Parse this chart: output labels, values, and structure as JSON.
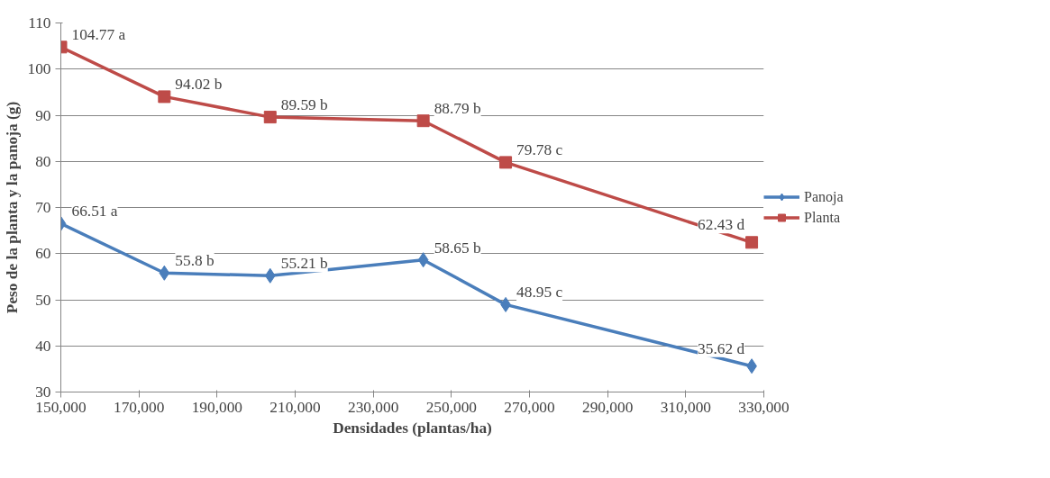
{
  "chart_data": {
    "type": "line",
    "xlabel": "Densidades (plantas/ha)",
    "ylabel": "Peso de la planta y la panoja (g)",
    "x": [
      150000,
      176500,
      203600,
      242800,
      263900,
      326900
    ],
    "xlim": [
      150000,
      330000
    ],
    "xticks": [
      {
        "value": 150000,
        "label": "150,000"
      },
      {
        "value": 170000,
        "label": "170,000"
      },
      {
        "value": 190000,
        "label": "190,000"
      },
      {
        "value": 210000,
        "label": "210,000"
      },
      {
        "value": 230000,
        "label": "230,000"
      },
      {
        "value": 250000,
        "label": "250,000"
      },
      {
        "value": 270000,
        "label": "270,000"
      },
      {
        "value": 290000,
        "label": "290,000"
      },
      {
        "value": 310000,
        "label": "310,000"
      },
      {
        "value": 330000,
        "label": "330,000"
      }
    ],
    "ylim": [
      30,
      110
    ],
    "yticks": [
      30,
      40,
      50,
      60,
      70,
      80,
      90,
      100,
      110
    ],
    "grid": "y",
    "legend": "right",
    "series": [
      {
        "name": "Panoja",
        "color": "#4a7ebb",
        "marker": "diamond",
        "values": [
          66.51,
          55.8,
          55.21,
          58.65,
          48.95,
          35.62
        ],
        "value_labels": [
          "66.51 a",
          "55.8 b",
          "55.21 b",
          "58.65 b",
          "48.95 c",
          "35.62 d"
        ]
      },
      {
        "name": "Planta",
        "color": "#be4b48",
        "marker": "square",
        "values": [
          104.77,
          94.02,
          89.59,
          88.79,
          79.78,
          62.43
        ],
        "value_labels": [
          "104.77 a",
          "94.02 b",
          "89.59 b",
          "88.79 b",
          "79.78 c",
          "62.43 d"
        ]
      }
    ]
  }
}
